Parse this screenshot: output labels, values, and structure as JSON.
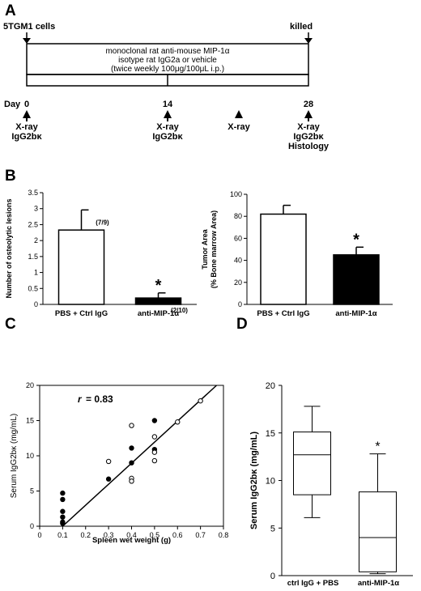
{
  "panels": {
    "A": "A",
    "B": "B",
    "C": "C",
    "D": "D"
  },
  "timeline": {
    "start_label": "5TGM1 cells",
    "end_label": "killed",
    "treatment_lines": [
      "monoclonal rat anti-mouse MIP-1α",
      "isotype rat IgG2a or vehicle",
      "(twice weekly 100μg/100μL i.p.)"
    ],
    "day_label": "Day",
    "days": [
      "0",
      "14",
      "28"
    ],
    "events": [
      {
        "day": 0,
        "lines": [
          "X-ray",
          "IgG2bκ"
        ]
      },
      {
        "day": 14,
        "lines": [
          "X-ray",
          "IgG2bκ"
        ]
      },
      {
        "day": 21,
        "lines": [
          "X-ray"
        ]
      },
      {
        "day": 28,
        "lines": [
          "X-ray",
          "IgG2bκ",
          "Histology"
        ]
      }
    ]
  },
  "chart_data": [
    {
      "type": "bar",
      "ylabel": "Number of osteolytic lesions",
      "ylim": [
        0,
        3.5
      ],
      "yticks": [
        "0",
        "0.5",
        "1",
        "1.5",
        "2",
        "2.5",
        "3",
        "3.5"
      ],
      "categories": [
        "PBS + Ctrl IgG",
        "anti-MIP-1α"
      ],
      "values": [
        2.33,
        0.2
      ],
      "errors": [
        0.63,
        0.16
      ],
      "annotations": [
        "(7/9)",
        "(2/10)"
      ],
      "significance": [
        "",
        "*"
      ],
      "colors": [
        "#ffffff",
        "#000000"
      ]
    },
    {
      "type": "bar",
      "ylabel": "Tumor Area",
      "ylabel2": "(% Bone marrow Area)",
      "ylim": [
        0,
        100
      ],
      "yticks": [
        "0",
        "20",
        "40",
        "60",
        "80",
        "100"
      ],
      "categories": [
        "PBS + Ctrl IgG",
        "anti-MIP-1α"
      ],
      "values": [
        82,
        45
      ],
      "errors": [
        8,
        7
      ],
      "significance": [
        "",
        "*"
      ],
      "colors": [
        "#ffffff",
        "#000000"
      ]
    },
    {
      "type": "scatter",
      "xlabel": "Spleen wet weight (g)",
      "ylabel": "Serum IgG2bκ (mg/mL)",
      "xlim": [
        0,
        0.8
      ],
      "ylim": [
        0,
        20
      ],
      "xticks": [
        "0",
        "0.1",
        "0.2",
        "0.3",
        "0.4",
        "0.5",
        "0.6",
        "0.7",
        "0.8"
      ],
      "yticks": [
        "0",
        "5",
        "10",
        "15",
        "20"
      ],
      "r_label": "r",
      "r_value": "= 0.83",
      "fit_line": [
        [
          0.1,
          0
        ],
        [
          0.77,
          20
        ]
      ],
      "series": [
        {
          "filled": true,
          "x": [
            0.1,
            0.1,
            0.1,
            0.1,
            0.1,
            0.1,
            0.3,
            0.4,
            0.4,
            0.5,
            0.5
          ],
          "y": [
            4.7,
            3.8,
            2.1,
            1.3,
            0.6,
            0.4,
            6.7,
            11.1,
            9.0,
            15.0,
            10.9
          ]
        },
        {
          "filled": false,
          "x": [
            0.3,
            0.4,
            0.4,
            0.4,
            0.5,
            0.5,
            0.5,
            0.6,
            0.7
          ],
          "y": [
            9.2,
            14.3,
            6.8,
            6.4,
            12.7,
            10.5,
            9.3,
            14.8,
            17.8
          ]
        }
      ]
    },
    {
      "type": "box",
      "ylabel": "Serum IgG2bκ (mg/mL)",
      "ylim": [
        0,
        20
      ],
      "yticks": [
        "0",
        "5",
        "10",
        "15",
        "20"
      ],
      "categories": [
        "ctrl IgG + PBS",
        "anti-MIP-1α"
      ],
      "boxes": [
        {
          "min": 6.1,
          "q1": 8.5,
          "median": 12.7,
          "q3": 15.1,
          "max": 17.8
        },
        {
          "min": 0.2,
          "q1": 0.4,
          "median": 4.0,
          "q3": 8.8,
          "max": 12.8
        }
      ],
      "significance": [
        "",
        "*"
      ]
    }
  ]
}
